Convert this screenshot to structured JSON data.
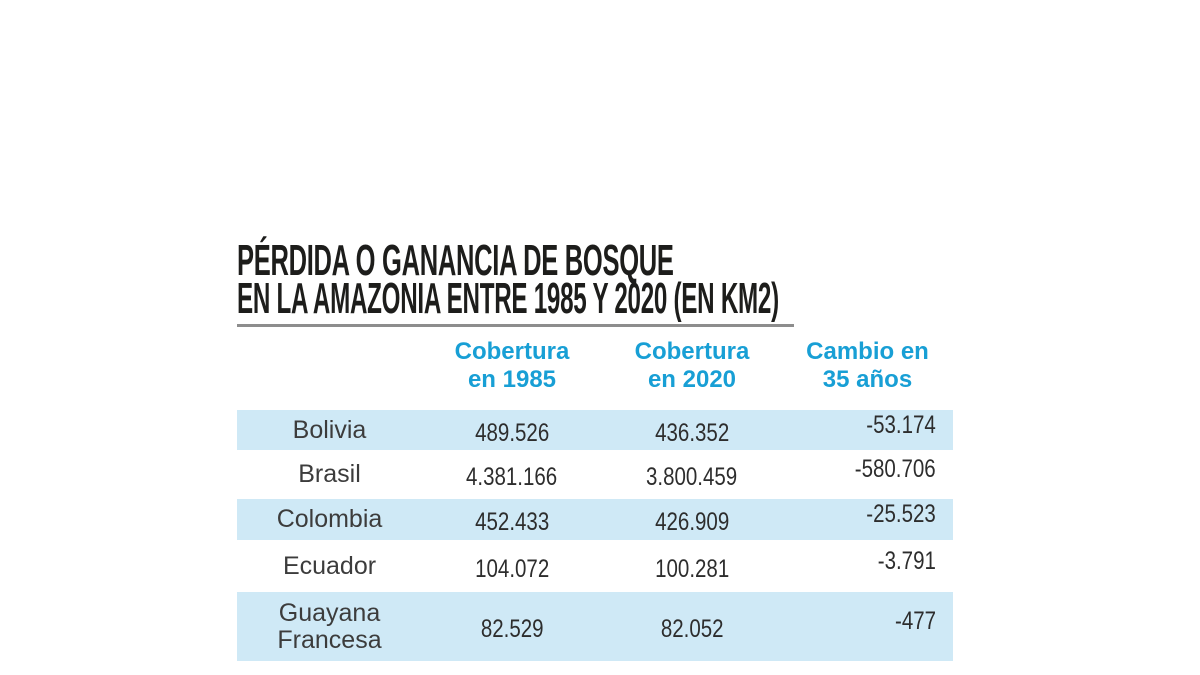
{
  "title": {
    "line1": "PÉRDIDA O GANANCIA DE BOSQUE",
    "line2": "EN LA AMAZONIA ENTRE 1985 Y 2020 (EN KM2)"
  },
  "table": {
    "headers": {
      "cobertura_1985": "Cobertura\nen 1985",
      "cobertura_2020": "Cobertura\nen 2020",
      "cambio": "Cambio en\n35 años"
    },
    "rows": [
      {
        "country": "Bolivia",
        "cobertura_1985": "489.526",
        "cobertura_2020": "436.352",
        "cambio": "-53.174"
      },
      {
        "country": "Brasil",
        "cobertura_1985": "4.381.166",
        "cobertura_2020": "3.800.459",
        "cambio": "-580.706"
      },
      {
        "country": "Colombia",
        "cobertura_1985": "452.433",
        "cobertura_2020": "426.909",
        "cambio": "-25.523"
      },
      {
        "country": "Ecuador",
        "cobertura_1985": "104.072",
        "cobertura_2020": "100.281",
        "cambio": "-3.791"
      },
      {
        "country": "Guayana Francesa",
        "cobertura_1985": "82.529",
        "cobertura_2020": "82.052",
        "cambio": "-477"
      }
    ]
  },
  "colors": {
    "accent_blue": "#189fd5",
    "row_blue": "#cfe9f6",
    "title_color": "#1d1d1b",
    "underline_gray": "#8d8d8d",
    "number_color": "#2d2d2d",
    "country_color": "#3c3c3c"
  },
  "chart_data": {
    "type": "table",
    "title": "PÉRDIDA O GANANCIA DE BOSQUE EN LA AMAZONIA ENTRE 1985 Y 2020 (EN KM2)",
    "columns": [
      "",
      "Cobertura en 1985",
      "Cobertura en 2020",
      "Cambio en 35 años"
    ],
    "rows": [
      [
        "Bolivia",
        489526,
        436352,
        -53174
      ],
      [
        "Brasil",
        4381166,
        3800459,
        -580706
      ],
      [
        "Colombia",
        452433,
        426909,
        -25523
      ],
      [
        "Ecuador",
        104072,
        100281,
        -3791
      ],
      [
        "Guayana Francesa",
        82529,
        82052,
        -477
      ]
    ],
    "units": "km2",
    "notes": "Alternating pale-blue row bands; change column right-aligned; headers in cyan bold"
  }
}
